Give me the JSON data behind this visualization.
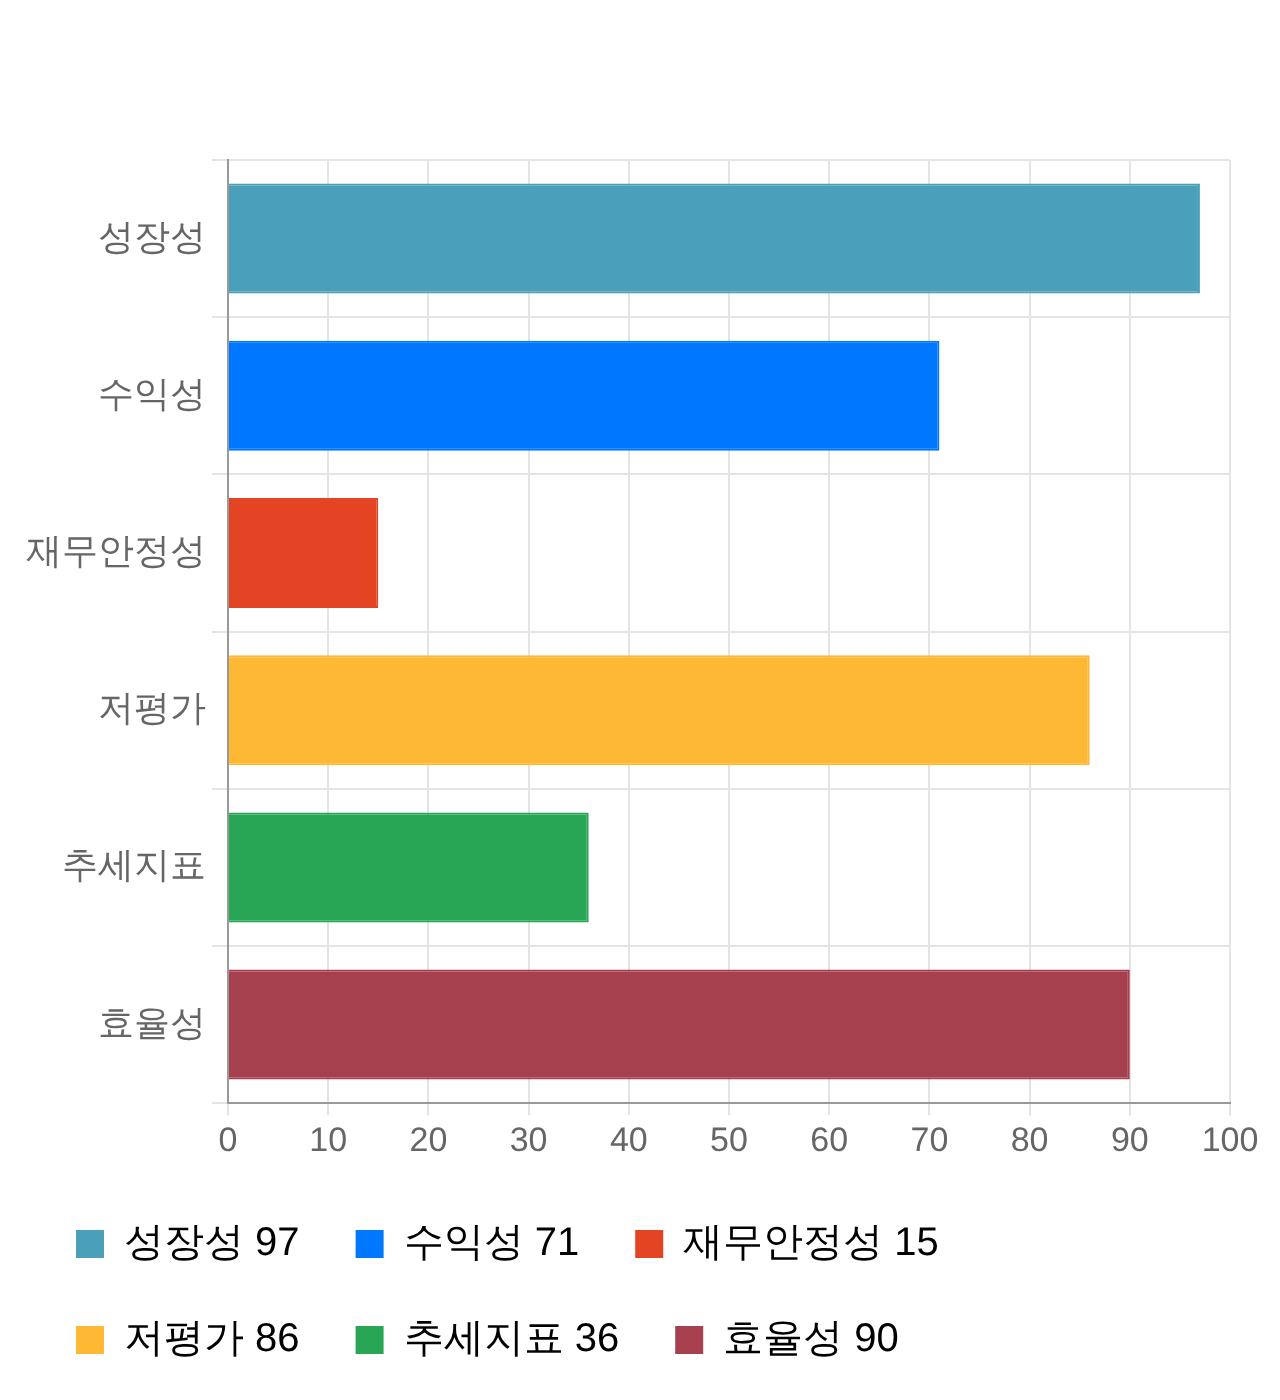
{
  "chart_data": {
    "type": "bar",
    "orientation": "horizontal",
    "categories": [
      "성장성",
      "수익성",
      "재무안정성",
      "저평가",
      "추세지표",
      "효율성"
    ],
    "series": [
      {
        "name": "성장성 97",
        "color": "#4aa0b8",
        "values": [
          97,
          null,
          null,
          null,
          null,
          null
        ]
      },
      {
        "name": "수익성 71",
        "color": "#0077ff",
        "values": [
          null,
          71,
          null,
          null,
          null,
          null
        ]
      },
      {
        "name": "재무안정성 15",
        "color": "#e34524",
        "values": [
          null,
          null,
          15,
          null,
          null,
          null
        ]
      },
      {
        "name": "저평가 86",
        "color": "#ffb833",
        "values": [
          null,
          null,
          null,
          86,
          null,
          null
        ]
      },
      {
        "name": "추세지표 36",
        "color": "#28a656",
        "values": [
          null,
          null,
          null,
          null,
          36,
          null
        ]
      },
      {
        "name": "효율성 90",
        "color": "#a6404f",
        "values": [
          null,
          null,
          null,
          null,
          null,
          90
        ]
      }
    ],
    "xlim": [
      0,
      100
    ],
    "xticks": [
      0,
      10,
      20,
      30,
      40,
      50,
      60,
      70,
      80,
      90,
      100
    ],
    "grid": true,
    "legend": "bottom"
  }
}
